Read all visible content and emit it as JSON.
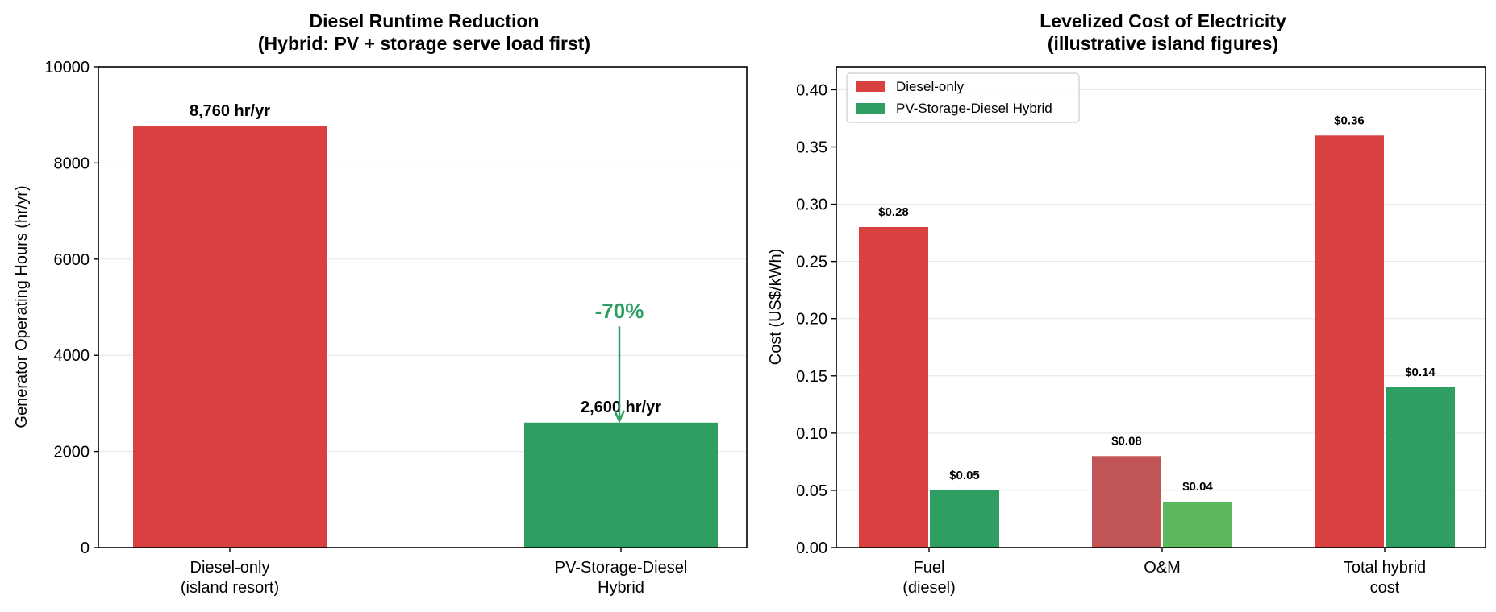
{
  "chart_data": [
    {
      "type": "bar",
      "title_lines": [
        "Diesel Runtime Reduction",
        "(Hybrid: PV + storage serve load first)"
      ],
      "xlabel": "",
      "ylabel": "Generator Operating Hours (hr/yr)",
      "ylim": [
        0,
        10000
      ],
      "yticks": [
        0,
        2000,
        4000,
        6000,
        8000,
        10000
      ],
      "grid": true,
      "categories": [
        {
          "lines": [
            "Diesel-only",
            "(island resort)"
          ]
        },
        {
          "lines": [
            "PV-Storage-Diesel",
            "Hybrid"
          ]
        }
      ],
      "values": [
        8760,
        2600
      ],
      "value_labels": [
        "8,760 hr/yr",
        "2,600 hr/yr"
      ],
      "colors": [
        "#d94141",
        "#2e9e62"
      ],
      "annotation": {
        "text": "-70%",
        "color": "#2e9e62",
        "from_value": 4600,
        "to_value": 2650
      }
    },
    {
      "type": "bar",
      "title_lines": [
        "Levelized Cost of Electricity",
        "(illustrative island figures)"
      ],
      "xlabel": "",
      "ylabel": "Cost (US$/kWh)",
      "ylim": [
        0,
        0.42
      ],
      "yticks": [
        "0.00",
        "0.05",
        "0.10",
        "0.15",
        "0.20",
        "0.25",
        "0.30",
        "0.35",
        "0.40"
      ],
      "grid": true,
      "legend_position": "top-left",
      "categories": [
        {
          "lines": [
            "Fuel",
            "(diesel)"
          ]
        },
        {
          "lines": [
            "O&M"
          ]
        },
        {
          "lines": [
            "Total hybrid",
            "cost"
          ]
        }
      ],
      "series": [
        {
          "name": "Diesel-only",
          "legend_color": "#d94141",
          "values": [
            0.28,
            0.08,
            0.36
          ],
          "value_labels": [
            "$0.28",
            "$0.08",
            "$0.36"
          ],
          "colors": [
            "#d94141",
            "#c25555",
            "#d94141"
          ]
        },
        {
          "name": "PV-Storage-Diesel Hybrid",
          "legend_color": "#2e9e62",
          "values": [
            0.05,
            0.04,
            0.14
          ],
          "value_labels": [
            "$0.05",
            "$0.04",
            "$0.14"
          ],
          "colors": [
            "#2e9e62",
            "#5cb85c",
            "#2e9e62"
          ]
        }
      ]
    }
  ]
}
